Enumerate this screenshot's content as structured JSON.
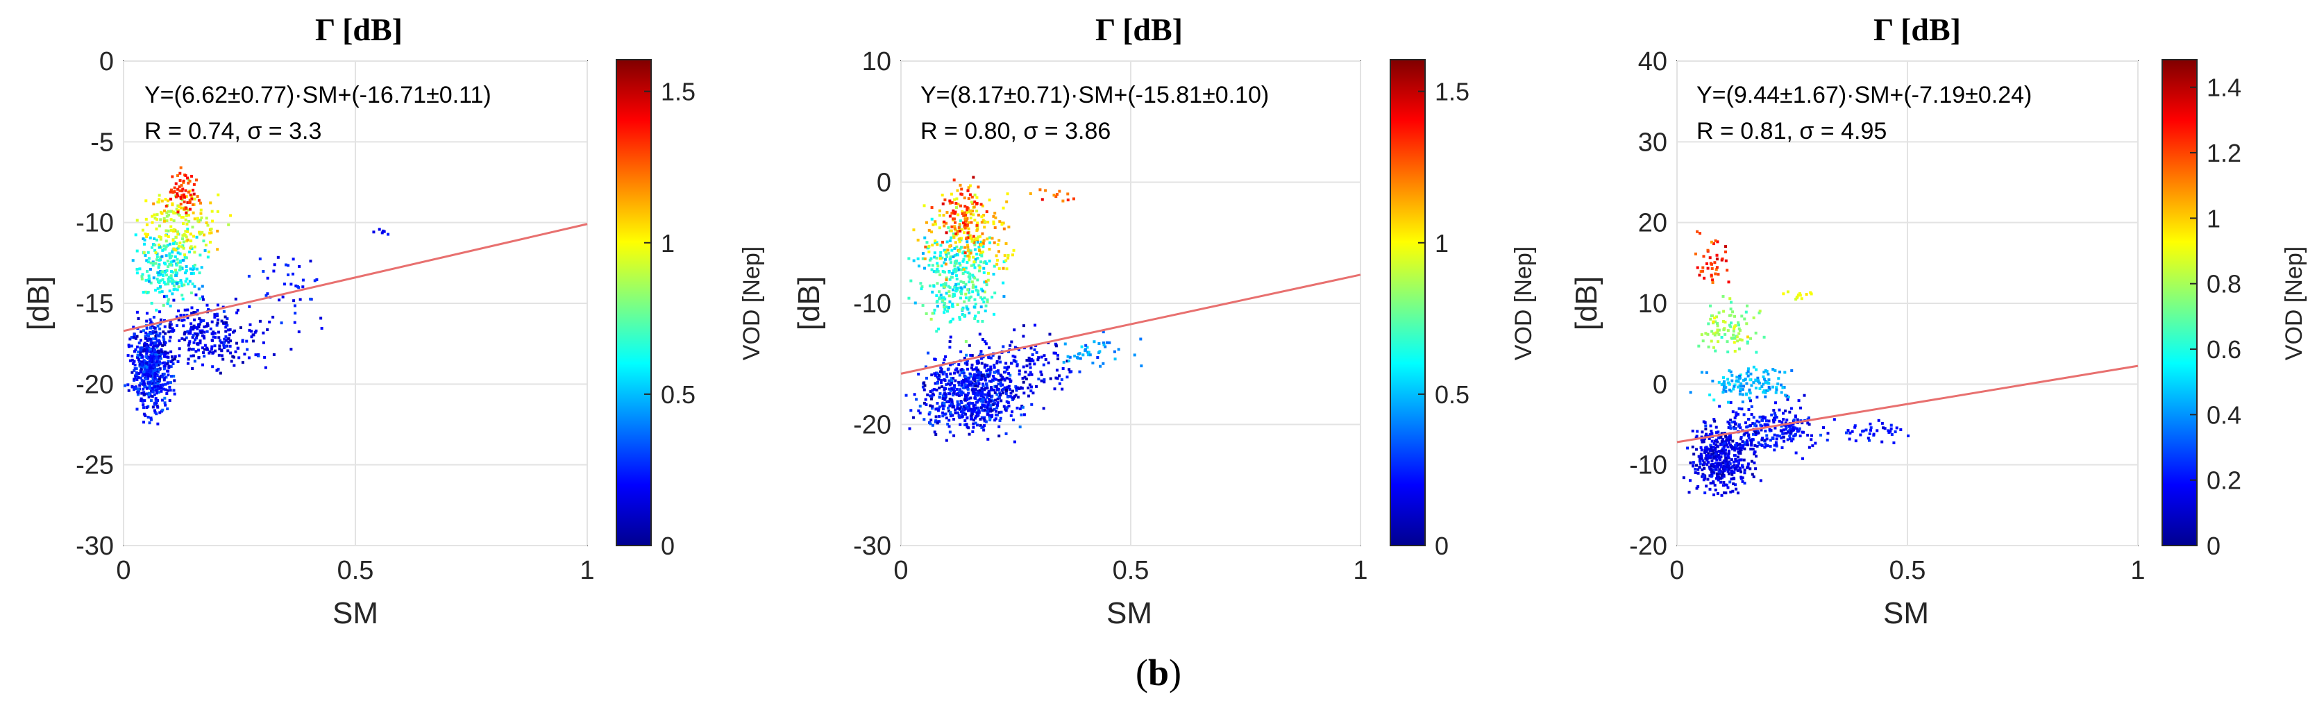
{
  "figure_caption": {
    "open": "(",
    "label": "b",
    "close": ")"
  },
  "chart_data": [
    {
      "type": "scatter",
      "title": "Γ [dB]",
      "xlabel": "SM",
      "ylabel": "[dB]",
      "xlim": [
        0,
        1
      ],
      "ylim": [
        -30,
        0
      ],
      "xticks": [
        "0",
        "0.5",
        "1"
      ],
      "yticks": [
        "-30",
        "-25",
        "-20",
        "-15",
        "-10",
        "-5",
        "0"
      ],
      "colorbar": {
        "label": "VOD [Nep]",
        "range": [
          0,
          1.6
        ],
        "ticks": [
          "0",
          "0.5",
          "1",
          "1.5"
        ]
      },
      "fit": {
        "slope": 6.62,
        "slope_err": 0.77,
        "intercept": -16.71,
        "intercept_err": 0.11,
        "color": "#e8706f"
      },
      "equation_text": "Y=(6.62±0.77)·SM+(-16.71±0.11)",
      "stats_text": "R = 0.74, σ = 3.3",
      "clusters": [
        {
          "n": 520,
          "x": [
            0.0,
            0.12
          ],
          "y": [
            -23,
            -15
          ],
          "c": [
            0.0,
            0.45
          ]
        },
        {
          "n": 260,
          "x": [
            0.02,
            0.35
          ],
          "y": [
            -20,
            -14
          ],
          "c": [
            0.0,
            0.35
          ]
        },
        {
          "n": 40,
          "x": [
            0.25,
            0.48
          ],
          "y": [
            -19,
            -10
          ],
          "c": [
            0.05,
            0.4
          ]
        },
        {
          "n": 220,
          "x": [
            0.0,
            0.2
          ],
          "y": [
            -16,
            -10
          ],
          "c": [
            0.35,
            0.9
          ]
        },
        {
          "n": 160,
          "x": [
            0.0,
            0.25
          ],
          "y": [
            -13,
            -7
          ],
          "c": [
            0.75,
            1.2
          ]
        },
        {
          "n": 60,
          "x": [
            0.08,
            0.18
          ],
          "y": [
            -10,
            -6
          ],
          "c": [
            1.1,
            1.55
          ]
        },
        {
          "n": 6,
          "x": [
            0.5,
            0.6
          ],
          "y": [
            -11,
            -10
          ],
          "c": [
            0.1,
            0.3
          ]
        }
      ]
    },
    {
      "type": "scatter",
      "title": "Γ [dB]",
      "xlabel": "SM",
      "ylabel": "[dB]",
      "xlim": [
        0,
        1
      ],
      "ylim": [
        -30,
        10
      ],
      "xticks": [
        "0",
        "0.5",
        "1"
      ],
      "yticks": [
        "-30",
        "-20",
        "-10",
        "0",
        "10"
      ],
      "colorbar": {
        "label": "VOD [Nep]",
        "range": [
          0,
          1.6
        ],
        "ticks": [
          "0",
          "0.5",
          "1",
          "1.5"
        ]
      },
      "fit": {
        "slope": 8.17,
        "slope_err": 0.71,
        "intercept": -15.81,
        "intercept_err": 0.1,
        "color": "#e8706f"
      },
      "equation_text": "Y=(8.17±0.71)·SM+(-15.81±0.10)",
      "stats_text": "R = 0.80, σ = 3.86",
      "clusters": [
        {
          "n": 650,
          "x": [
            0.0,
            0.3
          ],
          "y": [
            -22,
            -13
          ],
          "c": [
            0.0,
            0.45
          ]
        },
        {
          "n": 160,
          "x": [
            0.05,
            0.45
          ],
          "y": [
            -20,
            -11
          ],
          "c": [
            0.0,
            0.35
          ]
        },
        {
          "n": 40,
          "x": [
            0.3,
            0.55
          ],
          "y": [
            -16,
            -12
          ],
          "c": [
            0.3,
            0.6
          ]
        },
        {
          "n": 300,
          "x": [
            0.0,
            0.25
          ],
          "y": [
            -14,
            -2
          ],
          "c": [
            0.35,
            0.95
          ]
        },
        {
          "n": 180,
          "x": [
            0.02,
            0.28
          ],
          "y": [
            -9,
            1
          ],
          "c": [
            0.8,
            1.3
          ]
        },
        {
          "n": 70,
          "x": [
            0.05,
            0.2
          ],
          "y": [
            -6,
            1
          ],
          "c": [
            1.1,
            1.55
          ]
        },
        {
          "n": 12,
          "x": [
            0.25,
            0.4
          ],
          "y": [
            -2,
            0
          ],
          "c": [
            1.0,
            1.5
          ]
        }
      ]
    },
    {
      "type": "scatter",
      "title": "Γ [dB]",
      "xlabel": "SM",
      "ylabel": "[dB]",
      "xlim": [
        0,
        1
      ],
      "ylim": [
        -20,
        40
      ],
      "xticks": [
        "0",
        "0.5",
        "1"
      ],
      "yticks": [
        "-20",
        "-10",
        "0",
        "10",
        "20",
        "30",
        "40"
      ],
      "colorbar": {
        "label": "VOD [Nep]",
        "range": [
          0,
          1.48
        ],
        "ticks": [
          "0",
          "0.2",
          "0.4",
          "0.6",
          "0.8",
          "1",
          "1.2",
          "1.4"
        ]
      },
      "fit": {
        "slope": 9.44,
        "slope_err": 1.67,
        "intercept": -7.19,
        "intercept_err": 0.24,
        "color": "#e8706f"
      },
      "equation_text": "Y=(9.44±1.67)·SM+(-7.19±0.24)",
      "stats_text": "R = 0.81, σ = 4.95",
      "clusters": [
        {
          "n": 420,
          "x": [
            0.0,
            0.2
          ],
          "y": [
            -15,
            -3
          ],
          "c": [
            0.0,
            0.3
          ]
        },
        {
          "n": 220,
          "x": [
            0.05,
            0.35
          ],
          "y": [
            -10,
            -1
          ],
          "c": [
            0.05,
            0.35
          ]
        },
        {
          "n": 40,
          "x": [
            0.3,
            0.55
          ],
          "y": [
            -8,
            -4
          ],
          "c": [
            0.1,
            0.3
          ]
        },
        {
          "n": 120,
          "x": [
            0.02,
            0.3
          ],
          "y": [
            -3,
            3
          ],
          "c": [
            0.3,
            0.6
          ]
        },
        {
          "n": 90,
          "x": [
            0.02,
            0.2
          ],
          "y": [
            2,
            12
          ],
          "c": [
            0.55,
            1.0
          ]
        },
        {
          "n": 40,
          "x": [
            0.02,
            0.15
          ],
          "y": [
            10,
            21
          ],
          "c": [
            1.0,
            1.45
          ]
        },
        {
          "n": 12,
          "x": [
            0.2,
            0.32
          ],
          "y": [
            10,
            12
          ],
          "c": [
            0.8,
            1.0
          ]
        }
      ]
    }
  ]
}
